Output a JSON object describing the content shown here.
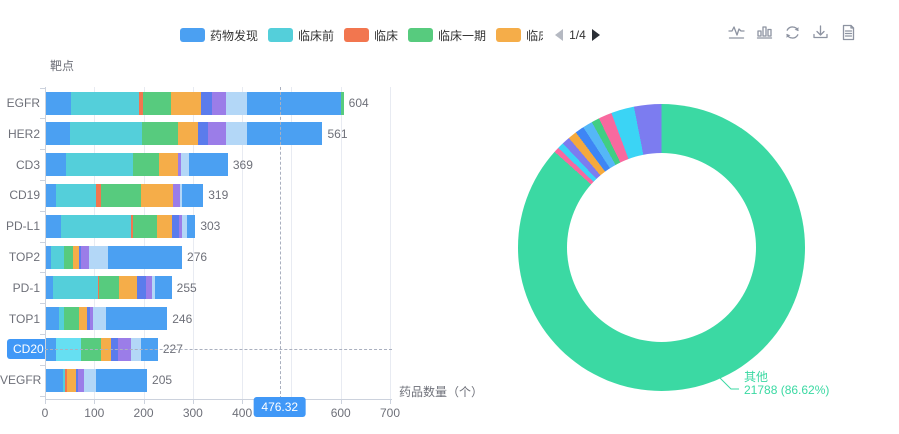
{
  "colors": {
    "palette": {
      "blue": "#4ba0f2",
      "teal": "#54cfda",
      "orange": "#f2764f",
      "green": "#57cb7e",
      "amber": "#f5ad49",
      "royal": "#5b7cec",
      "purple": "#9b7de8",
      "pale": "#b3d7f7",
      "sky": "#4ba0f2",
      "cyanlight": "#66dff2"
    },
    "axis_pointer_bg": "#4098f7",
    "highlight_label_bg": "#4098f7",
    "pie_label_color": "#3bd9a3"
  },
  "legend": {
    "items": [
      {
        "label": "药物发现",
        "color": "#4ba0f2",
        "clipped": false
      },
      {
        "label": "临床前",
        "color": "#54cfda",
        "clipped": false
      },
      {
        "label": "临床",
        "color": "#f2764f",
        "clipped": false
      },
      {
        "label": "临床一期",
        "color": "#57cb7e",
        "clipped": false
      },
      {
        "label": "临床二期",
        "color": "#f5ad49",
        "clipped": true
      }
    ],
    "pagination": {
      "text": "1/4"
    }
  },
  "toolbar": {
    "icons": [
      "line-chart",
      "bar-chart",
      "restore",
      "download",
      "data-view"
    ]
  },
  "chart_data": [
    {
      "type": "bar",
      "orientation": "horizontal",
      "stacked": true,
      "y_axis_name": "靶点",
      "xlabel": "药品数量（个）",
      "xlim": [
        0,
        700
      ],
      "x_ticks": [
        0,
        100,
        200,
        300,
        400,
        500,
        600,
        700
      ],
      "grid": true,
      "categories": [
        "EGFR",
        "HER2",
        "CD3",
        "CD19",
        "PD-L1",
        "TOP2",
        "PD-1",
        "TOP1",
        "CD20",
        "VEGFR"
      ],
      "totals": [
        604,
        561,
        369,
        319,
        303,
        276,
        255,
        246,
        227,
        205
      ],
      "stacks": [
        [
          [
            "blue",
            51
          ],
          [
            "teal",
            138
          ],
          [
            "orange",
            7
          ],
          [
            "green",
            58
          ],
          [
            "amber",
            61
          ],
          [
            "royal",
            22
          ],
          [
            "purple",
            29
          ],
          [
            "pale",
            41
          ],
          [
            "sky",
            191
          ],
          [
            "green",
            6
          ]
        ],
        [
          [
            "blue",
            49
          ],
          [
            "teal",
            146
          ],
          [
            "green",
            73
          ],
          [
            "amber",
            41
          ],
          [
            "royal",
            20
          ],
          [
            "purple",
            37
          ],
          [
            "pale",
            41
          ],
          [
            "sky",
            154
          ]
        ],
        [
          [
            "blue",
            41
          ],
          [
            "teal",
            135
          ],
          [
            "green",
            54
          ],
          [
            "amber",
            37
          ],
          [
            "purple",
            6
          ],
          [
            "pale",
            18
          ],
          [
            "sky",
            78
          ]
        ],
        [
          [
            "blue",
            20
          ],
          [
            "teal",
            81
          ],
          [
            "orange",
            10
          ],
          [
            "green",
            81
          ],
          [
            "amber",
            65
          ],
          [
            "purple",
            14
          ],
          [
            "pale",
            6
          ],
          [
            "sky",
            42
          ]
        ],
        [
          [
            "blue",
            30
          ],
          [
            "teal",
            142
          ],
          [
            "orange",
            5
          ],
          [
            "green",
            49
          ],
          [
            "amber",
            30
          ],
          [
            "royal",
            14
          ],
          [
            "purple",
            7
          ],
          [
            "pale",
            10
          ],
          [
            "sky",
            16
          ]
        ],
        [
          [
            "blue",
            10
          ],
          [
            "teal",
            27
          ],
          [
            "green",
            17
          ],
          [
            "amber",
            13
          ],
          [
            "royal",
            5
          ],
          [
            "purple",
            16
          ],
          [
            "pale",
            37
          ],
          [
            "sky",
            151
          ]
        ],
        [
          [
            "blue",
            14
          ],
          [
            "teal",
            91
          ],
          [
            "orange",
            2
          ],
          [
            "green",
            41
          ],
          [
            "amber",
            37
          ],
          [
            "royal",
            17
          ],
          [
            "purple",
            14
          ],
          [
            "pale",
            6
          ],
          [
            "sky",
            33
          ]
        ],
        [
          [
            "blue",
            27
          ],
          [
            "teal",
            10
          ],
          [
            "green",
            30
          ],
          [
            "amber",
            17
          ],
          [
            "royal",
            5
          ],
          [
            "purple",
            7
          ],
          [
            "pale",
            26
          ],
          [
            "sky",
            124
          ]
        ],
        [
          [
            "blue",
            20
          ],
          [
            "cyanlight",
            51
          ],
          [
            "green",
            41
          ],
          [
            "amber",
            20
          ],
          [
            "royal",
            14
          ],
          [
            "purple",
            26
          ],
          [
            "pale",
            20
          ],
          [
            "sky",
            35
          ]
        ],
        [
          [
            "blue",
            34
          ],
          [
            "teal",
            4
          ],
          [
            "orange",
            5
          ],
          [
            "amber",
            17
          ],
          [
            "royal",
            5
          ],
          [
            "purple",
            12
          ],
          [
            "pale",
            24
          ],
          [
            "sky",
            104
          ]
        ]
      ],
      "highlighted_category": "CD20",
      "axis_pointer_value": "476.32"
    },
    {
      "type": "pie",
      "donut": true,
      "labeled_slice": {
        "name": "其他",
        "value": 21788,
        "percent": 86.62
      },
      "label_line1": "其他",
      "label_line2": "21788  (86.62%)",
      "slices": [
        {
          "name": "其他",
          "percent": 86.62,
          "color": "#3bd9a3"
        },
        {
          "name": "",
          "percent": 0.6,
          "color": "#f8699f"
        },
        {
          "name": "",
          "percent": 0.7,
          "color": "#3bd4f5"
        },
        {
          "name": "",
          "percent": 0.9,
          "color": "#7c7cf0"
        },
        {
          "name": "",
          "percent": 1.0,
          "color": "#f5a93d"
        },
        {
          "name": "",
          "percent": 1.0,
          "color": "#3e86f5"
        },
        {
          "name": "",
          "percent": 1.1,
          "color": "#55b7f7"
        },
        {
          "name": "",
          "percent": 0.9,
          "color": "#41ce84"
        },
        {
          "name": "",
          "percent": 1.5,
          "color": "#f8699f"
        },
        {
          "name": "",
          "percent": 2.6,
          "color": "#3bd4f5"
        },
        {
          "name": "",
          "percent": 3.08,
          "color": "#7c7cf0"
        }
      ]
    }
  ]
}
